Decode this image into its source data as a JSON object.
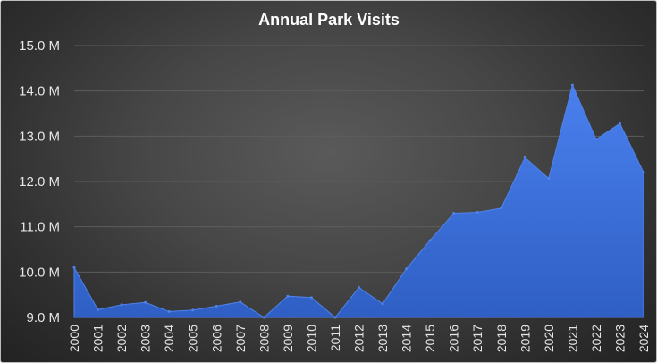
{
  "chart_data": {
    "type": "area",
    "title": "Annual Park Visits",
    "xlabel": "",
    "ylabel": "",
    "categories": [
      "2000",
      "2001",
      "2002",
      "2003",
      "2004",
      "2005",
      "2006",
      "2007",
      "2008",
      "2009",
      "2010",
      "2011",
      "2012",
      "2013",
      "2014",
      "2015",
      "2016",
      "2017",
      "2018",
      "2019",
      "2020",
      "2021",
      "2022",
      "2023",
      "2024"
    ],
    "values": [
      10.1,
      9.17,
      9.28,
      9.33,
      9.13,
      9.16,
      9.25,
      9.34,
      9.0,
      9.47,
      9.44,
      8.98,
      9.66,
      9.3,
      10.07,
      10.7,
      11.3,
      11.32,
      11.41,
      12.53,
      12.07,
      14.13,
      12.93,
      13.28,
      12.2
    ],
    "ylim": [
      9,
      15
    ],
    "y_ticks": [
      9,
      10,
      11,
      12,
      13,
      14,
      15
    ],
    "y_tick_labels": [
      "9.0 M",
      "10.0 M",
      "11.0 M",
      "12.0 M",
      "13.0 M",
      "14.0 M",
      "15.0 M"
    ],
    "grid": true,
    "legend": "none",
    "colors": {
      "area_fill": "#3a6fd8",
      "area_stroke": "#4f83ec",
      "gridline": "#5c5c5c",
      "text": "#e6e6e6",
      "title": "#ffffff"
    }
  }
}
